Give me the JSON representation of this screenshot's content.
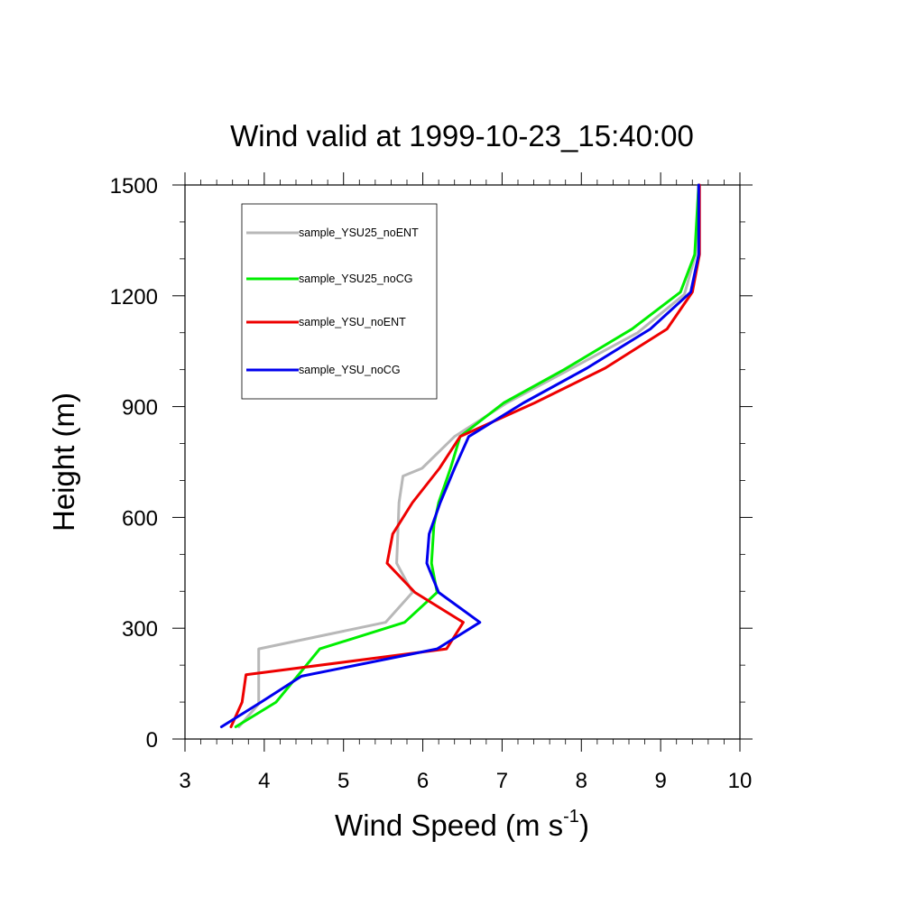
{
  "chart_data": {
    "type": "line",
    "title": "Wind valid at 1999-10-23_15:40:00",
    "xlabel": "Wind Speed (m s",
    "xlabel_superscript": "-1",
    "xlabel_suffix": ")",
    "ylabel": "Height (m)",
    "xlim": [
      3,
      10
    ],
    "ylim": [
      0,
      1500
    ],
    "x_ticks": [
      3,
      4,
      5,
      6,
      7,
      8,
      9,
      10
    ],
    "y_ticks": [
      0,
      300,
      600,
      900,
      1200,
      1500
    ],
    "x_tick_labels": [
      "3",
      "4",
      "5",
      "6",
      "7",
      "8",
      "9",
      "10"
    ],
    "y_tick_labels": [
      "0",
      "300",
      "600",
      "900",
      "1200",
      "1500"
    ],
    "grid": false,
    "legend_position": "top-left",
    "series": [
      {
        "name": "sample_YSU25_noENT",
        "color": "#b8b8b8",
        "points": [
          [
            3.68,
            33
          ],
          [
            3.93,
            95
          ],
          [
            3.93,
            244
          ],
          [
            5.53,
            316
          ],
          [
            5.87,
            397
          ],
          [
            5.67,
            476
          ],
          [
            5.7,
            640
          ],
          [
            5.75,
            712
          ],
          [
            5.99,
            733
          ],
          [
            6.4,
            819
          ],
          [
            7.06,
            910
          ],
          [
            7.82,
            997
          ],
          [
            8.71,
            1100
          ],
          [
            9.3,
            1204
          ],
          [
            9.44,
            1312
          ],
          [
            9.48,
            1500
          ]
        ]
      },
      {
        "name": "sample_YSU25_noCG",
        "color": "#00ee00",
        "points": [
          [
            3.64,
            33
          ],
          [
            4.15,
            100
          ],
          [
            4.7,
            244
          ],
          [
            5.77,
            316
          ],
          [
            6.18,
            397
          ],
          [
            6.11,
            476
          ],
          [
            6.14,
            580
          ],
          [
            6.2,
            640
          ],
          [
            6.35,
            733
          ],
          [
            6.47,
            819
          ],
          [
            7.02,
            910
          ],
          [
            7.78,
            1000
          ],
          [
            8.64,
            1110
          ],
          [
            9.25,
            1210
          ],
          [
            9.43,
            1312
          ],
          [
            9.48,
            1500
          ]
        ]
      },
      {
        "name": "sample_YSU_noENT",
        "color": "#ee0000",
        "points": [
          [
            3.58,
            33
          ],
          [
            3.72,
            100
          ],
          [
            3.77,
            174
          ],
          [
            6.3,
            244
          ],
          [
            6.51,
            316
          ],
          [
            5.9,
            397
          ],
          [
            5.55,
            476
          ],
          [
            5.62,
            555
          ],
          [
            5.87,
            640
          ],
          [
            6.21,
            733
          ],
          [
            6.47,
            819
          ],
          [
            7.41,
            910
          ],
          [
            8.3,
            1004
          ],
          [
            9.08,
            1110
          ],
          [
            9.4,
            1210
          ],
          [
            9.49,
            1312
          ],
          [
            9.49,
            1500
          ]
        ]
      },
      {
        "name": "sample_YSU_noCG",
        "color": "#0000ee",
        "points": [
          [
            3.46,
            33
          ],
          [
            3.96,
            100
          ],
          [
            4.47,
            170
          ],
          [
            6.18,
            244
          ],
          [
            6.72,
            316
          ],
          [
            6.2,
            397
          ],
          [
            6.05,
            476
          ],
          [
            6.08,
            555
          ],
          [
            6.22,
            640
          ],
          [
            6.4,
            733
          ],
          [
            6.58,
            819
          ],
          [
            7.27,
            910
          ],
          [
            8.07,
            1004
          ],
          [
            8.87,
            1110
          ],
          [
            9.38,
            1210
          ],
          [
            9.48,
            1312
          ],
          [
            9.48,
            1500
          ]
        ]
      }
    ]
  }
}
